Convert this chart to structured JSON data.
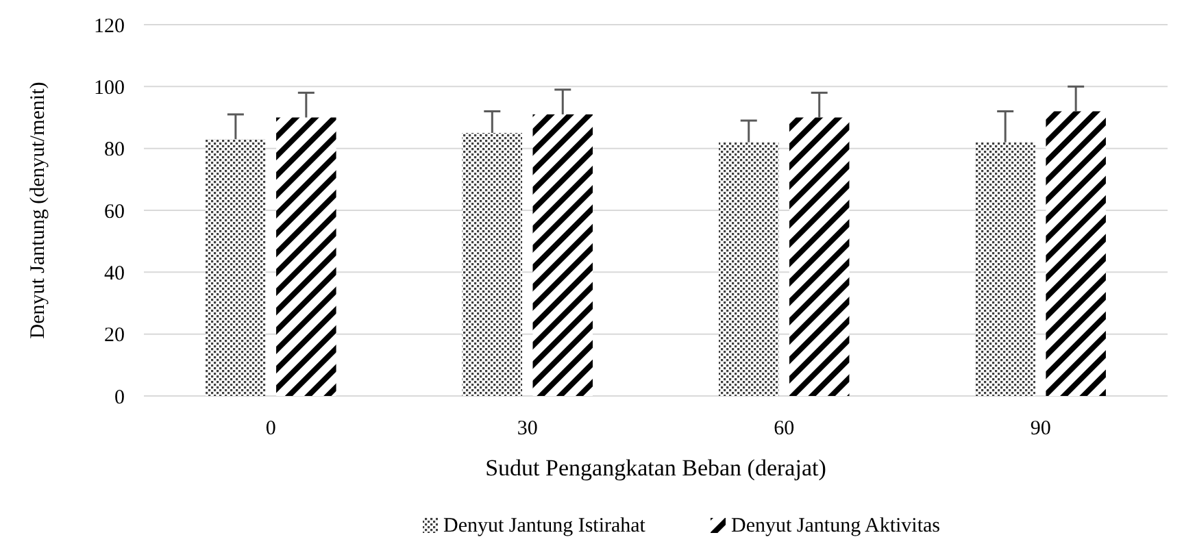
{
  "chart_data": {
    "type": "bar",
    "xlabel": "Sudut Pengangkatan Beban (derajat)",
    "ylabel": "Denyut Jantung (denyut/menit)",
    "categories": [
      "0",
      "30",
      "60",
      "90"
    ],
    "series": [
      {
        "name": "Denyut Jantung Istirahat",
        "color": "#404040",
        "values": [
          83,
          85,
          82,
          82
        ],
        "errors": [
          [
            83,
            91
          ],
          [
            85,
            92
          ],
          [
            82,
            89
          ],
          [
            82,
            92
          ]
        ]
      },
      {
        "name": "Denyut Jantung Aktivitas",
        "color": "#000000",
        "values": [
          90,
          91,
          90,
          92
        ],
        "errors": [
          [
            90,
            98
          ],
          [
            91,
            99
          ],
          [
            90,
            98
          ],
          [
            92,
            100
          ]
        ]
      }
    ],
    "ylim": [
      0,
      120
    ],
    "yticks": [
      0,
      20,
      40,
      60,
      80,
      100,
      120
    ],
    "grid": "y",
    "legend": "bottom"
  }
}
